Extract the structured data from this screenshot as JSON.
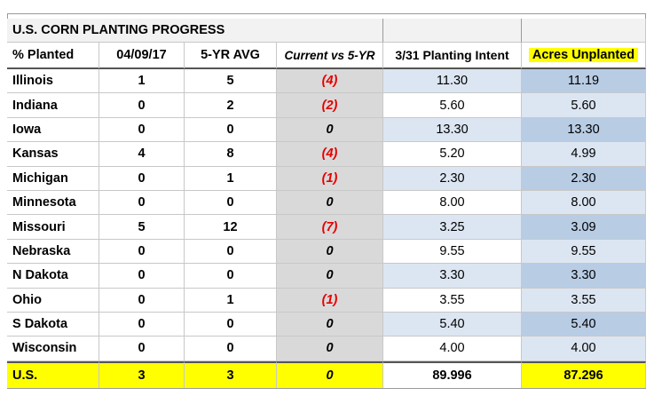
{
  "title": "U.S. CORN PLANTING PROGRESS",
  "headers": {
    "state": "% Planted",
    "date": "04/09/17",
    "avg": "5-YR AVG",
    "compare": "Current vs 5-YR",
    "intent": "3/31 Planting Intent",
    "acres": "Acres Unplanted"
  },
  "rows": [
    {
      "state": "Illinois",
      "current": "1",
      "avg": "5",
      "compare": "(4)",
      "intent": "11.30",
      "acres": "11.19"
    },
    {
      "state": "Indiana",
      "current": "0",
      "avg": "2",
      "compare": "(2)",
      "intent": "5.60",
      "acres": "5.60"
    },
    {
      "state": "Iowa",
      "current": "0",
      "avg": "0",
      "compare": "0",
      "intent": "13.30",
      "acres": "13.30"
    },
    {
      "state": "Kansas",
      "current": "4",
      "avg": "8",
      "compare": "(4)",
      "intent": "5.20",
      "acres": "4.99"
    },
    {
      "state": "Michigan",
      "current": "0",
      "avg": "1",
      "compare": "(1)",
      "intent": "2.30",
      "acres": "2.30"
    },
    {
      "state": "Minnesota",
      "current": "0",
      "avg": "0",
      "compare": "0",
      "intent": "8.00",
      "acres": "8.00"
    },
    {
      "state": "Missouri",
      "current": "5",
      "avg": "12",
      "compare": "(7)",
      "intent": "3.25",
      "acres": "3.09"
    },
    {
      "state": "Nebraska",
      "current": "0",
      "avg": "0",
      "compare": "0",
      "intent": "9.55",
      "acres": "9.55"
    },
    {
      "state": "N Dakota",
      "current": "0",
      "avg": "0",
      "compare": "0",
      "intent": "3.30",
      "acres": "3.30"
    },
    {
      "state": "Ohio",
      "current": "0",
      "avg": "1",
      "compare": "(1)",
      "intent": "3.55",
      "acres": "3.55"
    },
    {
      "state": "S Dakota",
      "current": "0",
      "avg": "0",
      "compare": "0",
      "intent": "5.40",
      "acres": "5.40"
    },
    {
      "state": "Wisconsin",
      "current": "0",
      "avg": "0",
      "compare": "0",
      "intent": "4.00",
      "acres": "4.00"
    }
  ],
  "total": {
    "state": "U.S.",
    "current": "3",
    "avg": "3",
    "compare": "0",
    "intent": "89.996",
    "acres": "87.296"
  },
  "colors": {
    "highlight": "#ffff00",
    "negative": "#e60000",
    "intent_band": "#dce6f2",
    "acres_band": "#b8cce4",
    "compare_band": "#d9d9d9"
  }
}
